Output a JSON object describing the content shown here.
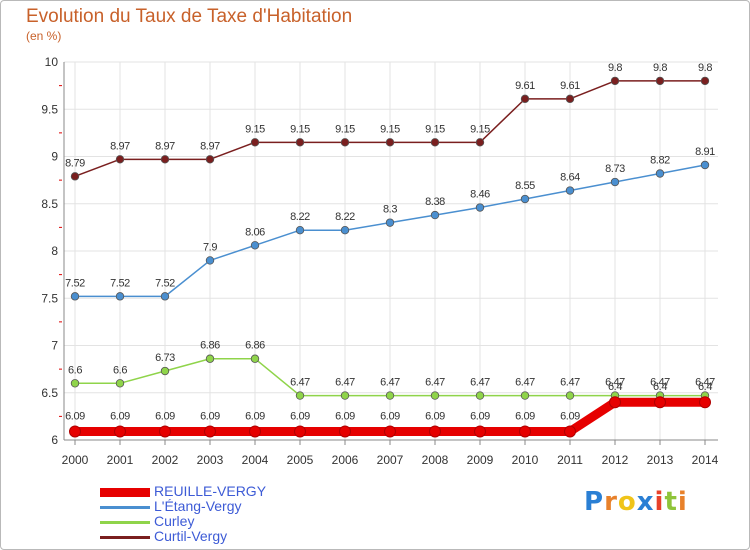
{
  "chart_data": {
    "type": "line",
    "title": "Evolution du Taux de Taxe d'Habitation",
    "ylabel": "(en %)",
    "xlabel": "",
    "categories": [
      "2000",
      "2001",
      "2002",
      "2003",
      "2004",
      "2005",
      "2006",
      "2007",
      "2008",
      "2009",
      "2010",
      "2011",
      "2012",
      "2013",
      "2014"
    ],
    "ylim": [
      6,
      10
    ],
    "yticks": [
      "6",
      "6.5",
      "7",
      "7.5",
      "8",
      "8.5",
      "9",
      "9.5",
      "10"
    ],
    "grid": true,
    "legend_position": "bottom-left",
    "series": [
      {
        "name": "REUILLE-VERGY",
        "color": "#e60000",
        "values": [
          6.09,
          6.09,
          6.09,
          6.09,
          6.09,
          6.09,
          6.09,
          6.09,
          6.09,
          6.09,
          6.09,
          6.09,
          6.4,
          6.4,
          6.4
        ],
        "labels": [
          "6.09",
          "6.09",
          "6.09",
          "6.09",
          "6.09",
          "6.09",
          "6.09",
          "6.09",
          "6.09",
          "6.09",
          "6.09",
          "6.09",
          "6.4",
          "6.4",
          "6.4"
        ]
      },
      {
        "name": "L'Étang-Vergy",
        "color": "#4a8fd0",
        "values": [
          7.52,
          7.52,
          7.52,
          7.9,
          8.06,
          8.22,
          8.22,
          8.3,
          8.38,
          8.46,
          8.55,
          8.64,
          8.73,
          8.82,
          8.91
        ],
        "labels": [
          "7.52",
          "7.52",
          "7.52",
          "7.9",
          "8.06",
          "8.22",
          "8.22",
          "8.3",
          "8.38",
          "8.46",
          "8.55",
          "8.64",
          "8.73",
          "8.82",
          "8.91"
        ]
      },
      {
        "name": "Curley",
        "color": "#8fd44a",
        "values": [
          6.6,
          6.6,
          6.73,
          6.86,
          6.86,
          6.47,
          6.47,
          6.47,
          6.47,
          6.47,
          6.47,
          6.47,
          6.47,
          6.47,
          6.47
        ],
        "labels": [
          "6.6",
          "6.6",
          "6.73",
          "6.86",
          "6.86",
          "6.47",
          "6.47",
          "6.47",
          "6.47",
          "6.47",
          "6.47",
          "6.47",
          "6.47",
          "6.47",
          "6.47"
        ]
      },
      {
        "name": "Curtil-Vergy",
        "color": "#7a1f1f",
        "values": [
          8.79,
          8.97,
          8.97,
          8.97,
          9.15,
          9.15,
          9.15,
          9.15,
          9.15,
          9.15,
          9.61,
          9.61,
          9.8,
          9.8,
          9.8
        ],
        "labels": [
          "8.79",
          "8.97",
          "8.97",
          "8.97",
          "9.15",
          "9.15",
          "9.15",
          "9.15",
          "9.15",
          "9.15",
          "9.61",
          "9.61",
          "9.8",
          "9.8",
          "9.8"
        ]
      }
    ]
  },
  "logo": {
    "text": "Proxiti",
    "letters": [
      "P",
      "r",
      "o",
      "x",
      "i",
      "t",
      "i"
    ],
    "colors": [
      "#2a7fd4",
      "#e8812a",
      "#f0c419",
      "#2a7fd4",
      "#e8412a",
      "#8fc43a",
      "#e8812a"
    ]
  }
}
